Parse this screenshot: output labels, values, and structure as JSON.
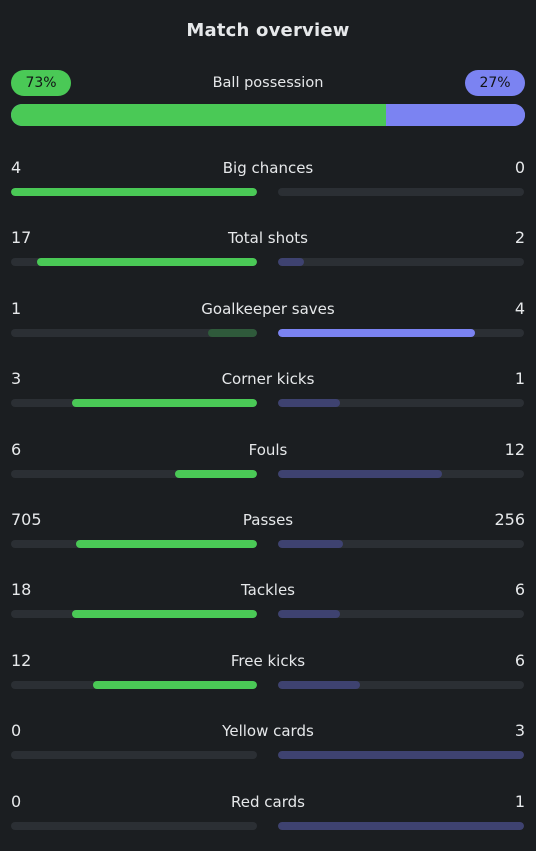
{
  "title": "Match overview",
  "colors": {
    "home_strong": "#4ac956",
    "home_weak": "#2f5a3b",
    "away_strong": "#7b83f2",
    "away_weak": "#3e4270",
    "track": "#2b2f34"
  },
  "possession": {
    "label": "Ball possession",
    "home_text": "73%",
    "away_text": "27%",
    "home_pct": 73,
    "away_pct": 27
  },
  "stats": [
    {
      "label": "Big chances",
      "home": "4",
      "away": "0",
      "home_fill": 1.0,
      "away_fill": 0.0,
      "leader": "home"
    },
    {
      "label": "Total shots",
      "home": "17",
      "away": "2",
      "home_fill": 0.895,
      "away_fill": 0.105,
      "leader": "home"
    },
    {
      "label": "Goalkeeper saves",
      "home": "1",
      "away": "4",
      "home_fill": 0.2,
      "away_fill": 0.8,
      "leader": "away"
    },
    {
      "label": "Corner kicks",
      "home": "3",
      "away": "1",
      "home_fill": 0.75,
      "away_fill": 0.25,
      "leader": "home"
    },
    {
      "label": "Fouls",
      "home": "6",
      "away": "12",
      "home_fill": 0.333,
      "away_fill": 0.667,
      "leader": "home"
    },
    {
      "label": "Passes",
      "home": "705",
      "away": "256",
      "home_fill": 0.734,
      "away_fill": 0.266,
      "leader": "home"
    },
    {
      "label": "Tackles",
      "home": "18",
      "away": "6",
      "home_fill": 0.75,
      "away_fill": 0.25,
      "leader": "home"
    },
    {
      "label": "Free kicks",
      "home": "12",
      "away": "6",
      "home_fill": 0.667,
      "away_fill": 0.333,
      "leader": "home"
    },
    {
      "label": "Yellow cards",
      "home": "0",
      "away": "3",
      "home_fill": 0.0,
      "away_fill": 1.0,
      "leader": "none"
    },
    {
      "label": "Red cards",
      "home": "0",
      "away": "1",
      "home_fill": 0.0,
      "away_fill": 1.0,
      "leader": "none"
    }
  ]
}
